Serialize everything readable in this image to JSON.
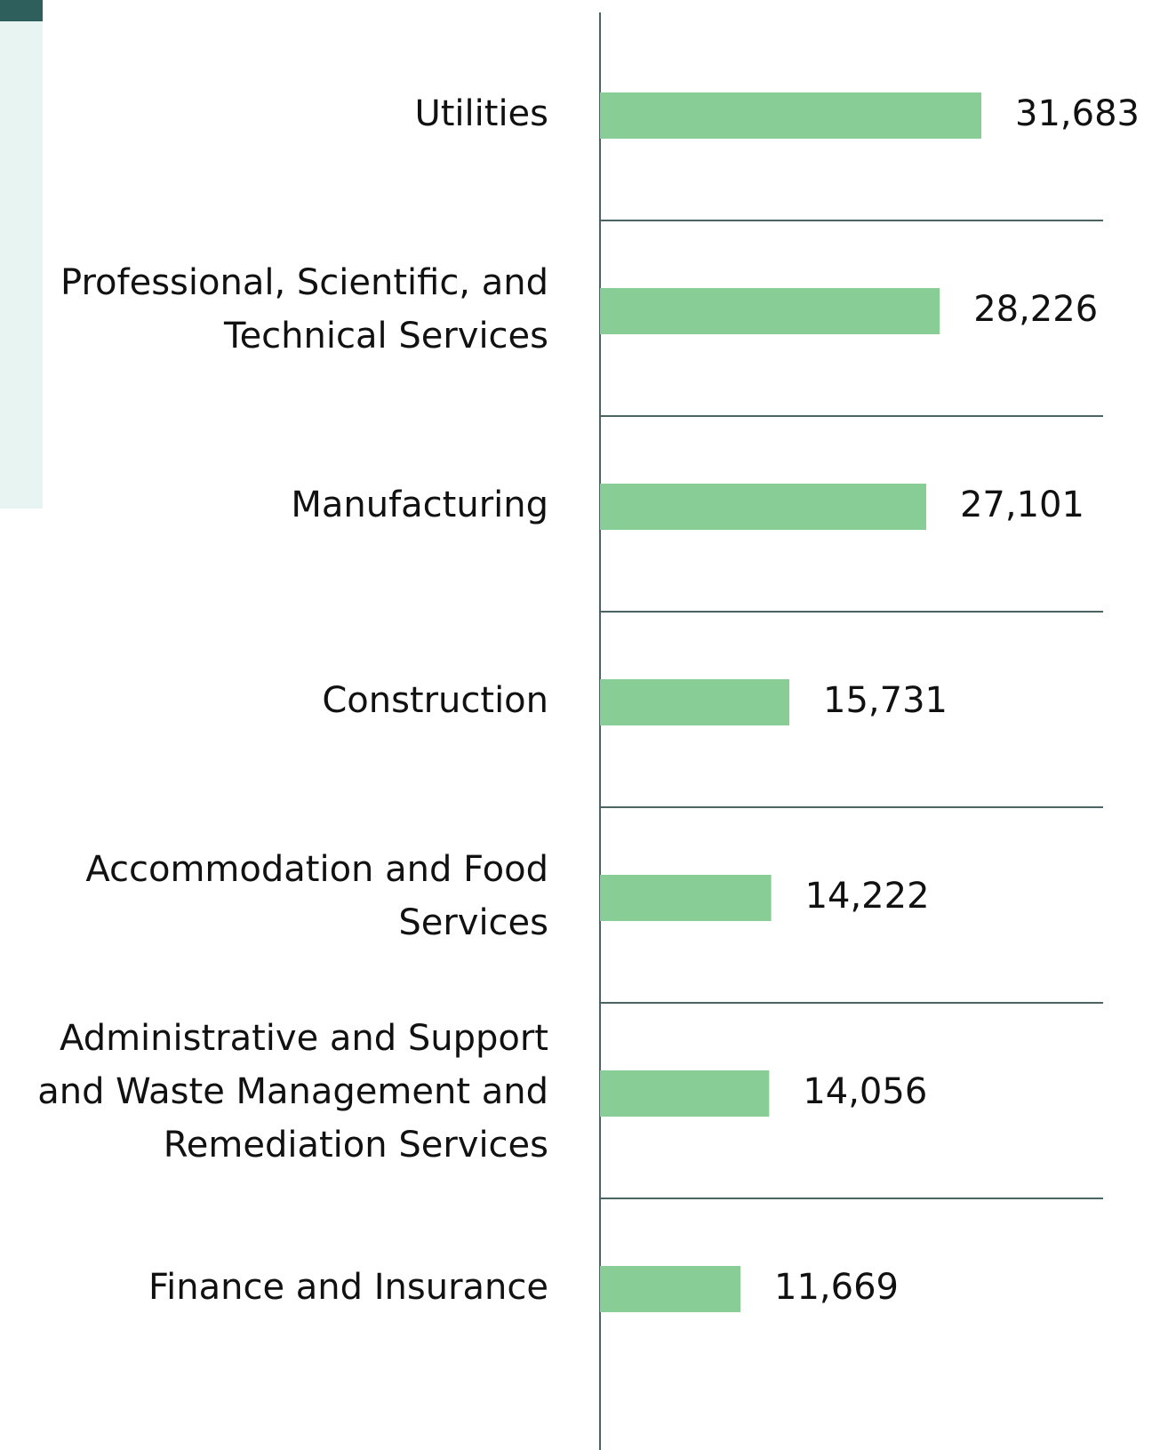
{
  "chart_data": {
    "type": "bar",
    "orientation": "horizontal",
    "categories": [
      "Utilities",
      "Professional, Scientific, and Technical Services",
      "Manufacturing",
      "Construction",
      "Accommodation and Food Services",
      "Administrative and Support and Waste Management and Remediation Services",
      "Finance and Insurance"
    ],
    "values": [
      31683,
      28226,
      27101,
      15731,
      14222,
      14056,
      11669
    ],
    "value_labels": [
      "31,683",
      "28,226",
      "27,101",
      "15,731",
      "14,222",
      "14,056",
      "11,669"
    ],
    "color": "#88cc96",
    "xlim": [
      0,
      41800
    ]
  }
}
